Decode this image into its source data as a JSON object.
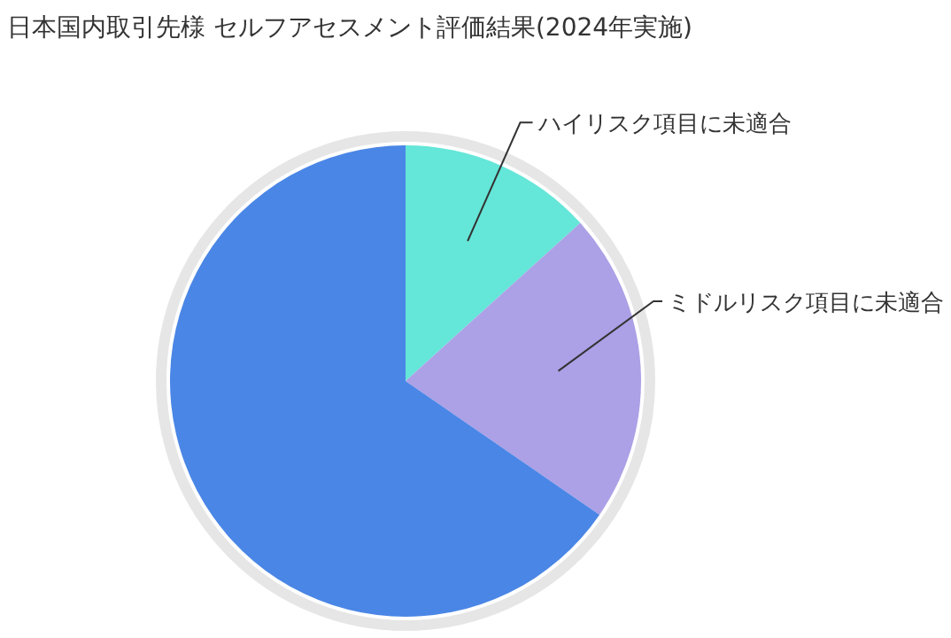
{
  "chart_data": {
    "type": "pie",
    "title": "日本国内取引先様 セルフアセスメント評価結果(2024年実施)",
    "categories": [
      "ハイリスク項目に未適合",
      "ミドルリスク項目に未適合",
      null
    ],
    "values": [
      13.3,
      21.3,
      65.4
    ],
    "colors": [
      "#64e6d8",
      "#aca0e6",
      "#4a86e6"
    ],
    "legend": false
  }
}
